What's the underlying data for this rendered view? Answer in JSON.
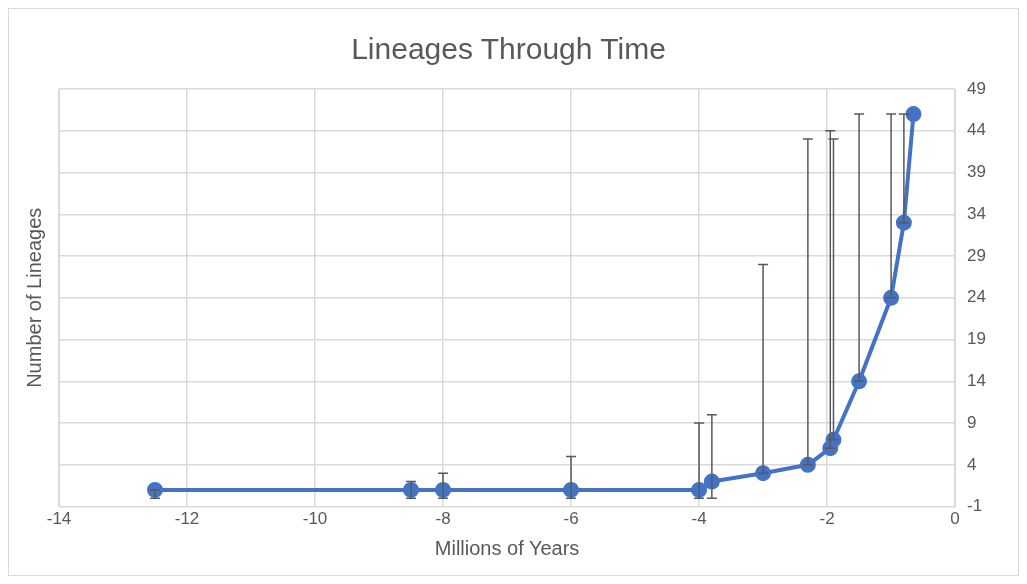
{
  "chart_data": {
    "type": "line",
    "title": "Lineages Through Time",
    "xlabel": "Millions of Years",
    "ylabel": "Number of Lineages",
    "x": [
      -12.5,
      -8.5,
      -8,
      -6,
      -4,
      -3.8,
      -3,
      -2.3,
      -1.95,
      -1.9,
      -1.5,
      -1,
      -0.8,
      -0.65
    ],
    "series": [
      {
        "color": "#4472c4",
        "values": [
          1,
          1,
          1,
          1,
          1,
          2,
          3,
          4,
          6,
          7,
          14,
          24,
          33,
          46
        ],
        "errors": [
          [
            0,
            1
          ],
          [
            0,
            2
          ],
          [
            0,
            3
          ],
          [
            0,
            5
          ],
          [
            0,
            9
          ],
          [
            0,
            10
          ],
          [
            3,
            28
          ],
          [
            4,
            43
          ],
          [
            6,
            44
          ],
          [
            7,
            43
          ],
          [
            14,
            46
          ],
          [
            24,
            46
          ],
          [
            33,
            46
          ],
          null
        ]
      }
    ],
    "xlim": [
      -14,
      0
    ],
    "xticks": [
      -14,
      -12,
      -10,
      -8,
      -6,
      -4,
      -2,
      0
    ],
    "ylim": [
      -1,
      49
    ],
    "yticks": [
      -1,
      4,
      9,
      14,
      19,
      24,
      29,
      34,
      39,
      44,
      49
    ],
    "grid": true,
    "legend": false,
    "marker": "circle",
    "line_style": "solid"
  }
}
